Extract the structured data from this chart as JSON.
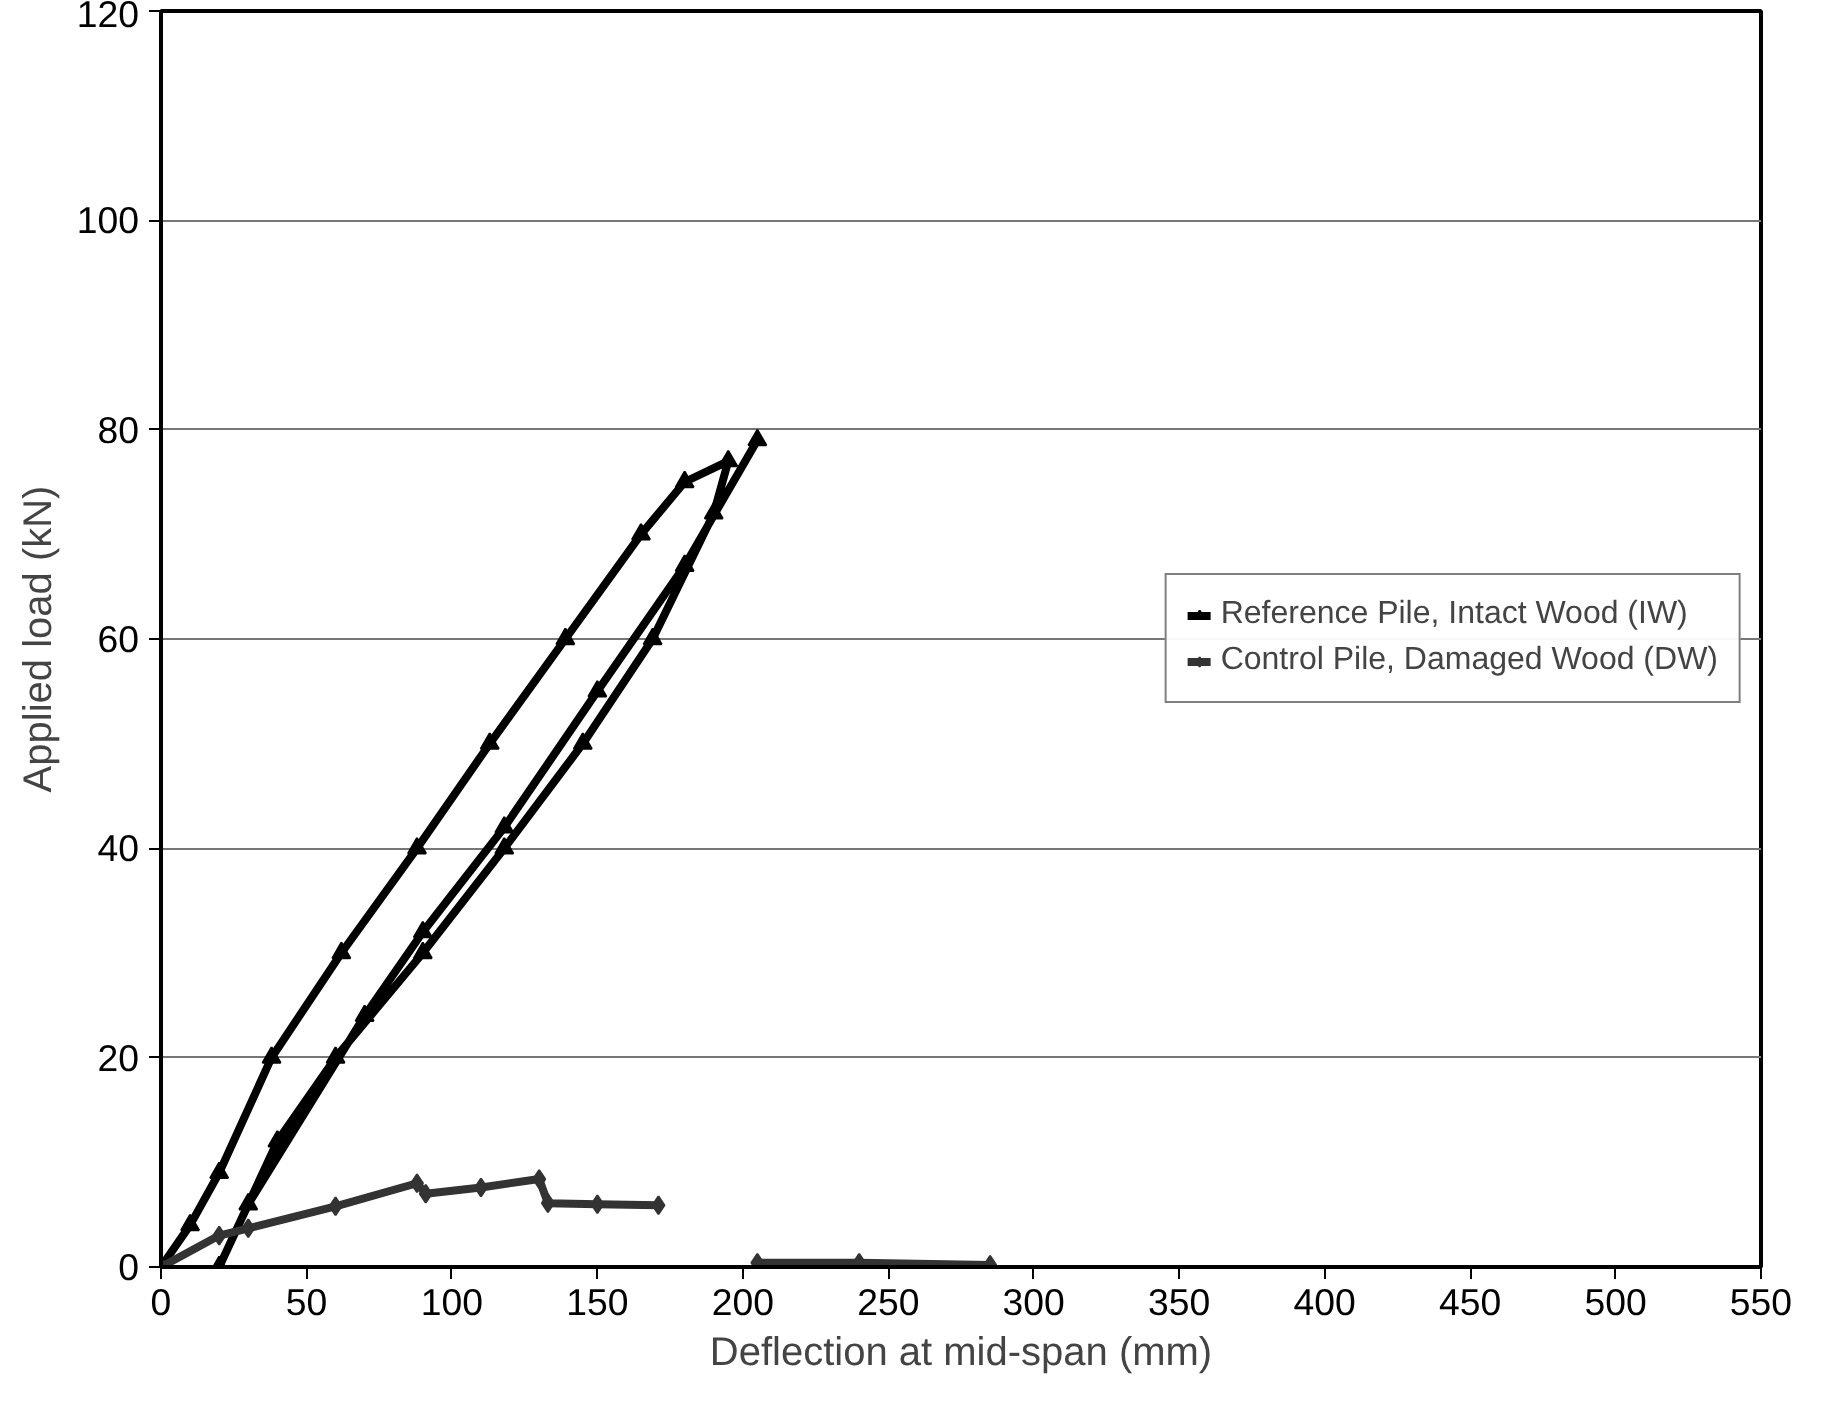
{
  "chart_data": {
    "type": "line",
    "xlabel": "Deflection at mid-span (mm)",
    "ylabel": "Applied load (kN)",
    "xlim": [
      0,
      550
    ],
    "xticks": [
      0,
      50,
      100,
      150,
      200,
      250,
      300,
      350,
      400,
      450,
      500,
      550
    ],
    "ylim": [
      0,
      120
    ],
    "yticks": [
      0,
      20,
      40,
      60,
      80,
      100,
      120
    ],
    "grid": "y",
    "legend": "right",
    "series": [
      {
        "name": "Reference Pile, Intact Wood (IW)",
        "color": "#000000",
        "marker": "triangle",
        "x": [
          0,
          10,
          20,
          38,
          62,
          88,
          113,
          139,
          165,
          180,
          195,
          190,
          169,
          145,
          118,
          90,
          60,
          40,
          20,
          30,
          70,
          90,
          118,
          150,
          180,
          205
        ],
        "values": [
          0,
          4,
          9,
          20,
          30,
          40,
          50,
          60,
          70,
          75,
          77,
          72,
          60,
          50,
          40,
          30,
          20,
          12,
          0,
          6,
          24,
          32,
          42,
          55,
          67,
          79
        ]
      },
      {
        "name": "Control Pile, Damaged Wood (DW)",
        "color": "#333333",
        "marker": "diamond",
        "x": [
          0,
          20,
          30,
          60,
          88,
          91,
          110,
          130,
          133,
          150,
          171,
          null,
          205,
          240,
          285
        ],
        "values": [
          0,
          3,
          3.7,
          5.8,
          8.0,
          7.0,
          7.6,
          8.4,
          6.1,
          6.0,
          5.9,
          null,
          0.4,
          0.4,
          0.2
        ]
      }
    ]
  }
}
